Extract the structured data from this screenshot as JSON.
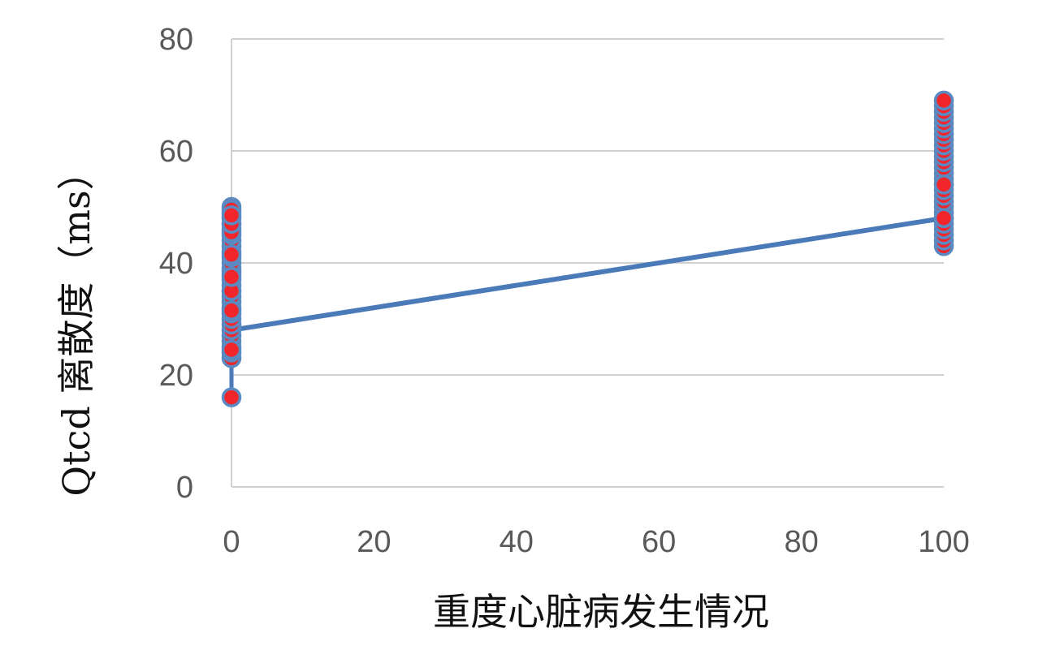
{
  "chart_data": {
    "type": "scatter",
    "title": "",
    "xlabel": "重度心脏病发生情况",
    "ylabel": "Qtcd 离散度（ms）",
    "xlim": [
      0,
      100
    ],
    "ylim": [
      0,
      80
    ],
    "x_ticks": [
      "0",
      "20",
      "40",
      "60",
      "80",
      "100"
    ],
    "y_ticks": [
      "0",
      "20",
      "40",
      "60",
      "80"
    ],
    "grid": "horizontal",
    "legend": "none",
    "colors": {
      "point_fill": "#f0262b",
      "point_edge": "#5b8ac3",
      "trend_line": "#4a7ab8",
      "grid": "#d0d0d0"
    },
    "series": [
      {
        "x": [
          0,
          0,
          0,
          0,
          0,
          0,
          0,
          0,
          0,
          0,
          0,
          0,
          0,
          0,
          0,
          0,
          0,
          0,
          0,
          0,
          0,
          0,
          0,
          0,
          0,
          0,
          0,
          0,
          0,
          0,
          0,
          0,
          0,
          0,
          0,
          0,
          0,
          0,
          0,
          100,
          100,
          100,
          100,
          100,
          100,
          100,
          100,
          100,
          100,
          100,
          100,
          100,
          100,
          100,
          100,
          100,
          100,
          100,
          100,
          100,
          100,
          100,
          100,
          100,
          100,
          100,
          100,
          100
        ],
        "y": [
          16,
          23,
          24,
          25,
          26,
          27,
          28,
          29,
          30,
          31,
          32,
          33,
          34,
          35,
          36,
          37,
          38,
          38.5,
          39,
          40,
          41,
          42,
          43,
          44,
          45,
          46,
          47,
          48,
          49,
          50,
          41.5,
          45.5,
          35,
          31.5,
          37.5,
          24.5,
          47,
          49.5,
          48.5,
          43,
          44,
          45,
          46,
          47,
          48,
          49,
          50,
          51,
          52,
          53,
          54,
          55,
          56,
          57,
          58,
          59,
          60,
          61,
          62,
          63,
          64,
          65,
          66,
          67,
          68,
          69,
          48,
          54
        ]
      }
    ],
    "trend_line": {
      "x": [
        0,
        100
      ],
      "y": [
        28,
        48
      ]
    }
  }
}
